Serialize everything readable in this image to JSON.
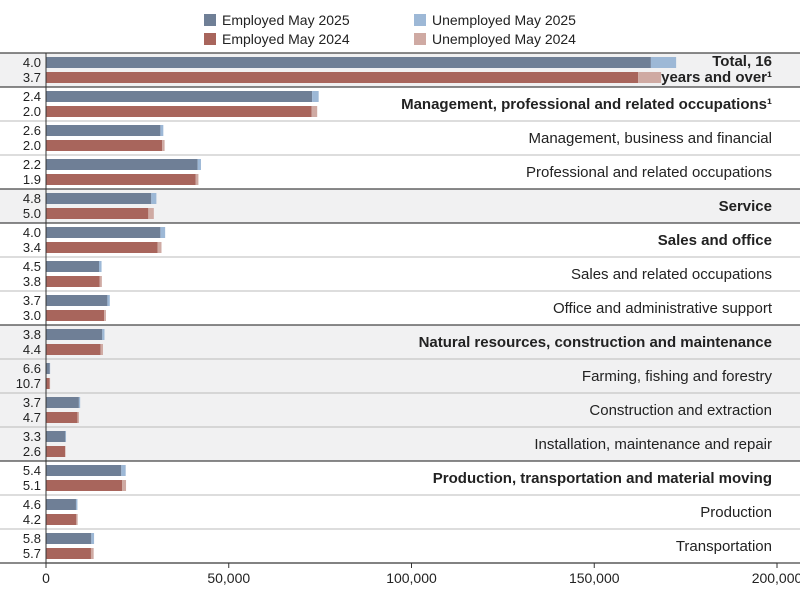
{
  "chart_data": {
    "type": "bar",
    "orientation": "horizontal",
    "stacked": true,
    "legend": {
      "employed_2025": "Employed May 2025",
      "unemployed_2025": "Unemployed May 2025",
      "employed_2024": "Employed May 2024",
      "unemployed_2024": "Unemployed May 2024"
    },
    "colors": {
      "employed_2025": "#6f7f96",
      "unemployed_2025": "#9db8d6",
      "employed_2024": "#a8655c",
      "unemployed_2024": "#cfaaa3",
      "band": "#f1f1f2"
    },
    "xlim": [
      0,
      200000
    ],
    "x_ticks": [
      {
        "value": 0,
        "label": "0"
      },
      {
        "value": 50000,
        "label": "50,000"
      },
      {
        "value": 100000,
        "label": "100,000"
      },
      {
        "value": 150000,
        "label": "150,000"
      },
      {
        "value": 200000,
        "label": "200,000"
      }
    ],
    "categories": [
      {
        "label": "Total, 16",
        "label2": "years and over¹",
        "bold": true,
        "band": true,
        "emp2025": 165500,
        "unemp2025": 6900,
        "emp2024": 162000,
        "unemp2024": 6300,
        "rate2025": "4.0",
        "rate2024": "3.7"
      },
      {
        "label": "Management, professional and related occupations¹",
        "bold": true,
        "band": false,
        "emp2025": 72800,
        "unemp2025": 1800,
        "emp2024": 72700,
        "unemp2024": 1500,
        "rate2025": "2.4",
        "rate2024": "2.0"
      },
      {
        "label": "Management, business and financial",
        "bold": false,
        "band": false,
        "emp2025": 31300,
        "unemp2025": 800,
        "emp2024": 31800,
        "unemp2024": 650,
        "rate2025": "2.6",
        "rate2024": "2.0"
      },
      {
        "label": "Professional and related occupations",
        "bold": false,
        "band": false,
        "emp2025": 41500,
        "unemp2025": 900,
        "emp2024": 40900,
        "unemp2024": 800,
        "rate2025": "2.2",
        "rate2024": "1.9"
      },
      {
        "label": "Service",
        "bold": true,
        "band": true,
        "emp2025": 28800,
        "unemp2025": 1400,
        "emp2024": 28000,
        "unemp2024": 1500,
        "rate2025": "4.8",
        "rate2024": "5.0"
      },
      {
        "label": "Sales and office",
        "bold": true,
        "band": false,
        "emp2025": 31300,
        "unemp2025": 1300,
        "emp2024": 30500,
        "unemp2024": 1100,
        "rate2025": "4.0",
        "rate2024": "3.4"
      },
      {
        "label": "Sales and related occupations",
        "bold": false,
        "band": false,
        "emp2025": 14500,
        "unemp2025": 700,
        "emp2024": 14700,
        "unemp2024": 580,
        "rate2025": "4.5",
        "rate2024": "3.8"
      },
      {
        "label": "Office and administrative support",
        "bold": false,
        "band": false,
        "emp2025": 16800,
        "unemp2025": 650,
        "emp2024": 15900,
        "unemp2024": 500,
        "rate2025": "3.7",
        "rate2024": "3.0"
      },
      {
        "label": "Natural resources, construction and maintenance",
        "bold": true,
        "band": true,
        "emp2025": 15400,
        "unemp2025": 600,
        "emp2024": 14900,
        "unemp2024": 690,
        "rate2025": "3.8",
        "rate2024": "4.4"
      },
      {
        "label": "Farming, fishing and forestry",
        "bold": false,
        "band": true,
        "emp2025": 1050,
        "unemp2025": 80,
        "emp2024": 1000,
        "unemp2024": 120,
        "rate2025": "6.6",
        "rate2024": "10.7"
      },
      {
        "label": "Construction and extraction",
        "bold": false,
        "band": true,
        "emp2025": 9000,
        "unemp2025": 350,
        "emp2024": 8600,
        "unemp2024": 420,
        "rate2025": "3.7",
        "rate2024": "4.7"
      },
      {
        "label": "Installation, maintenance and repair",
        "bold": false,
        "band": true,
        "emp2025": 5300,
        "unemp2025": 180,
        "emp2024": 5200,
        "unemp2024": 140,
        "rate2025": "3.3",
        "rate2024": "2.6"
      },
      {
        "label": "Production, transportation and material moving",
        "bold": true,
        "band": false,
        "emp2025": 20600,
        "unemp2025": 1200,
        "emp2024": 20800,
        "unemp2024": 1100,
        "rate2025": "5.4",
        "rate2024": "5.1"
      },
      {
        "label": "Production",
        "bold": false,
        "band": false,
        "emp2025": 8200,
        "unemp2025": 400,
        "emp2024": 8300,
        "unemp2024": 360,
        "rate2025": "4.6",
        "rate2024": "4.2"
      },
      {
        "label": "Transportation",
        "bold": false,
        "band": false,
        "emp2025": 12400,
        "unemp2025": 750,
        "emp2024": 12300,
        "unemp2024": 740,
        "rate2025": "5.8",
        "rate2024": "5.7"
      }
    ]
  }
}
